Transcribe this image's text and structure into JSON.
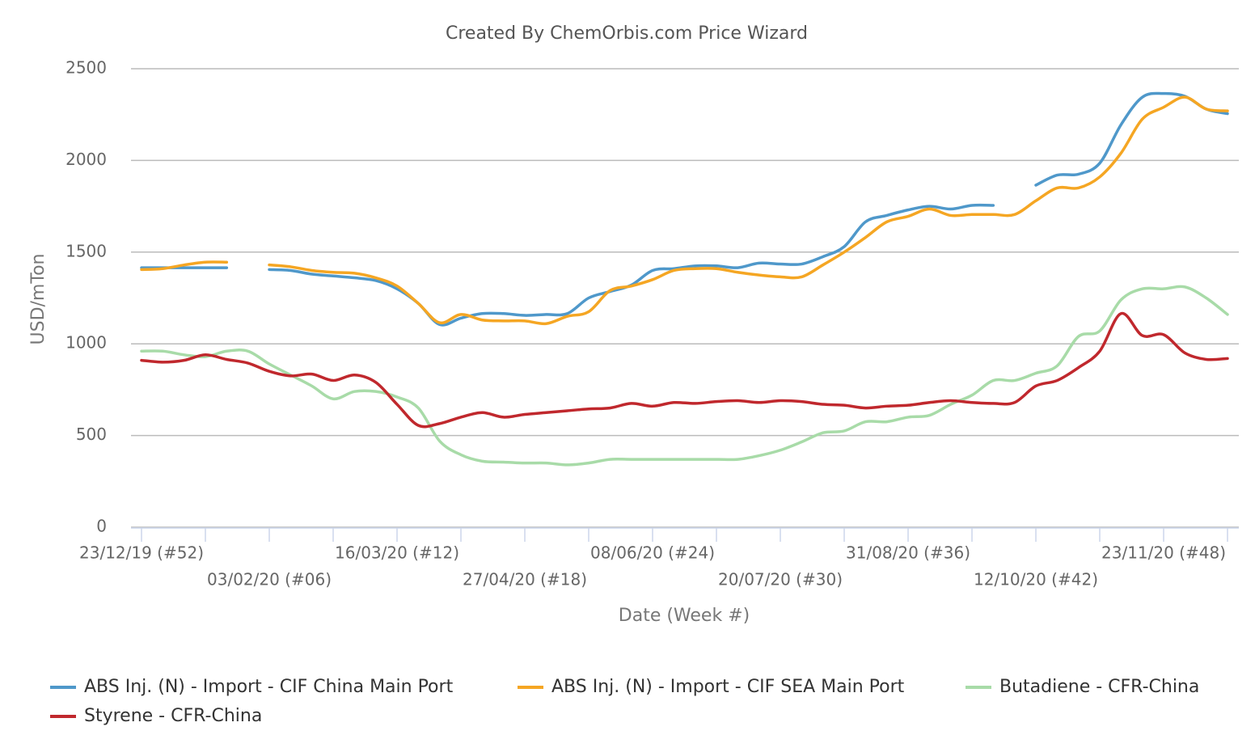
{
  "chart_data": {
    "type": "line",
    "title": "Created By ChemOrbis.com Price Wizard",
    "x_label": "Date (Week #)",
    "y_label": "USD/mTon",
    "categories": [
      "23/12/19 (#52)",
      null,
      null,
      null,
      null,
      null,
      "03/02/20 (#06)",
      null,
      null,
      null,
      null,
      null,
      "16/03/20 (#12)",
      null,
      null,
      null,
      null,
      null,
      "27/04/20 (#18)",
      null,
      null,
      null,
      null,
      null,
      "08/06/20 (#24)",
      null,
      null,
      null,
      null,
      null,
      "20/07/20 (#30)",
      null,
      null,
      null,
      null,
      null,
      "31/08/20 (#36)",
      null,
      null,
      null,
      null,
      null,
      "12/10/20 (#42)",
      null,
      null,
      null,
      null,
      null,
      "23/11/20 (#48)",
      null,
      null,
      null
    ],
    "series": [
      {
        "name": "ABS Inj. (N) - Import - CIF China Main Port",
        "color": "#4f98ca",
        "values": [
          1415,
          1415,
          1415,
          1415,
          1415,
          null,
          1405,
          1400,
          1380,
          1370,
          1360,
          1345,
          1300,
          1220,
          1105,
          1140,
          1165,
          1165,
          1155,
          1160,
          1165,
          1250,
          1285,
          1320,
          1400,
          1410,
          1425,
          1425,
          1415,
          1440,
          1435,
          1435,
          1475,
          1530,
          1665,
          1700,
          1730,
          1750,
          1735,
          1755,
          1755,
          null,
          1865,
          1920,
          1925,
          1985,
          2195,
          2345,
          2365,
          2350,
          2280,
          2255
        ]
      },
      {
        "name": "ABS Inj. (N) - Import - CIF SEA Main Port",
        "color": "#f5a623",
        "values": [
          1405,
          1410,
          1430,
          1445,
          1445,
          null,
          1430,
          1420,
          1400,
          1390,
          1385,
          1360,
          1315,
          1220,
          1115,
          1160,
          1130,
          1125,
          1125,
          1110,
          1150,
          1175,
          1290,
          1315,
          1350,
          1400,
          1410,
          1410,
          1390,
          1375,
          1365,
          1365,
          1430,
          1500,
          1580,
          1665,
          1695,
          1735,
          1700,
          1705,
          1705,
          1705,
          1780,
          1850,
          1850,
          1910,
          2040,
          2225,
          2290,
          2345,
          2280,
          2270
        ]
      },
      {
        "name": "Butadiene - CFR-China",
        "color": "#a8dba8",
        "values": [
          960,
          960,
          940,
          930,
          960,
          960,
          890,
          830,
          770,
          700,
          740,
          740,
          710,
          650,
          470,
          395,
          360,
          355,
          350,
          350,
          340,
          350,
          370,
          370,
          370,
          370,
          370,
          370,
          370,
          390,
          420,
          465,
          515,
          525,
          575,
          575,
          600,
          610,
          670,
          720,
          800,
          800,
          840,
          880,
          1040,
          1070,
          1240,
          1300,
          1300,
          1310,
          1250,
          1160
        ]
      },
      {
        "name": "Styrene - CFR-China",
        "color": "#c0282d",
        "values": [
          910,
          900,
          910,
          940,
          915,
          895,
          850,
          825,
          835,
          800,
          830,
          790,
          670,
          555,
          565,
          600,
          625,
          600,
          615,
          625,
          635,
          645,
          650,
          675,
          660,
          680,
          675,
          685,
          690,
          680,
          690,
          685,
          670,
          665,
          650,
          660,
          665,
          680,
          690,
          680,
          675,
          680,
          770,
          800,
          870,
          960,
          1165,
          1045,
          1050,
          950,
          915,
          920
        ]
      }
    ],
    "ylim": [
      0,
      2500
    ],
    "yticks": [
      0,
      500,
      1000,
      1500,
      2000,
      2500
    ],
    "grid": true
  }
}
